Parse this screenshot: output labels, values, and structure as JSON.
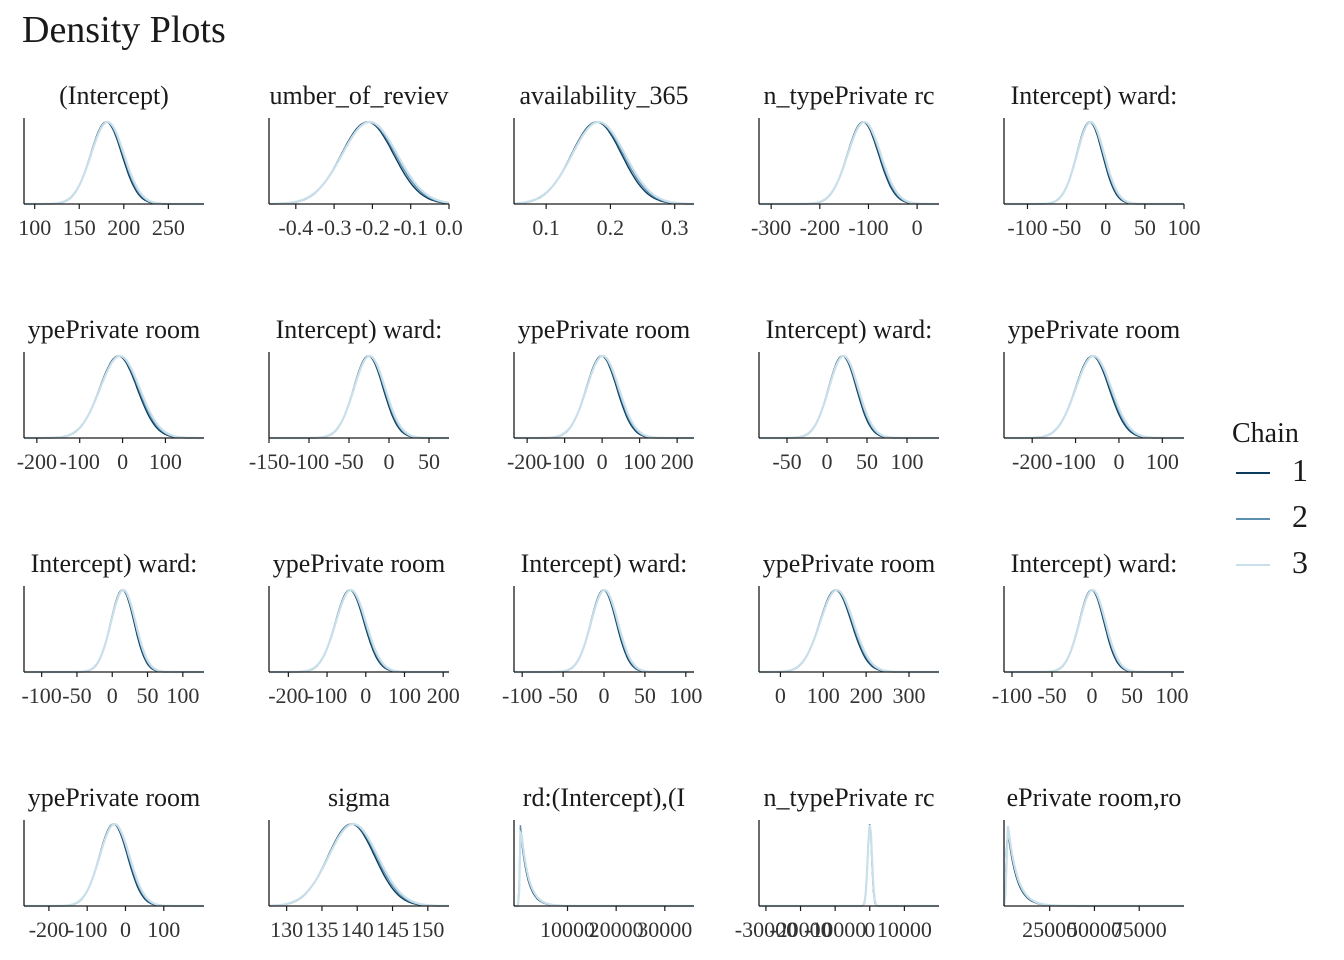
{
  "title": "Density Plots",
  "legend": {
    "title": "Chain",
    "items": [
      {
        "label": "1",
        "color": "#0b3c5d"
      },
      {
        "label": "2",
        "color": "#5b8fb2"
      },
      {
        "label": "3",
        "color": "#c9dfea"
      }
    ]
  },
  "chart_data": [
    {
      "type": "area",
      "title": "(Intercept)",
      "xlim": [
        88,
        290
      ],
      "ticks": [
        100,
        150,
        200,
        250
      ],
      "tick_labels": [
        "100",
        "150",
        "200",
        "250"
      ],
      "mean": 181,
      "sd": 18,
      "shape": "normal"
    },
    {
      "type": "area",
      "title": "umber_of_reviev",
      "xlim": [
        -0.47,
        0.0
      ],
      "ticks": [
        -0.4,
        -0.3,
        -0.2,
        -0.1,
        0.0
      ],
      "tick_labels": [
        "-0.4",
        "-0.3",
        "-0.2",
        "-0.1",
        "0.0"
      ],
      "mean": -0.21,
      "sd": 0.07,
      "shape": "normal"
    },
    {
      "type": "area",
      "title": "availability_365",
      "xlim": [
        0.05,
        0.33
      ],
      "ticks": [
        0.1,
        0.2,
        0.3
      ],
      "tick_labels": [
        "0.1",
        "0.2",
        "0.3"
      ],
      "mean": 0.18,
      "sd": 0.04,
      "shape": "normal"
    },
    {
      "type": "area",
      "title": "n_typePrivate rc",
      "xlim": [
        -325,
        45
      ],
      "ticks": [
        -300,
        -200,
        -100,
        0
      ],
      "tick_labels": [
        "-300",
        "-200",
        "-100",
        "0"
      ],
      "mean": -110,
      "sd": 33,
      "shape": "normal"
    },
    {
      "type": "area",
      "title": "Intercept) ward:",
      "xlim": [
        -130,
        100
      ],
      "ticks": [
        -100,
        -50,
        0,
        50,
        100
      ],
      "tick_labels": [
        "-100",
        "-50",
        "0",
        "50",
        "100"
      ],
      "mean": -20,
      "sd": 17,
      "shape": "normal"
    },
    {
      "type": "area",
      "title": "ypePrivate room",
      "xlim": [
        -230,
        190
      ],
      "ticks": [
        -200,
        -100,
        0,
        100
      ],
      "tick_labels": [
        "-200",
        "-100",
        "0",
        "100"
      ],
      "mean": -8,
      "sd": 45,
      "shape": "normal"
    },
    {
      "type": "area",
      "title": "Intercept) ward:",
      "xlim": [
        -150,
        75
      ],
      "ticks": [
        -150,
        -100,
        -50,
        0,
        50
      ],
      "tick_labels": [
        "-150",
        "-100",
        "-50",
        "0",
        "50"
      ],
      "mean": -25,
      "sd": 19,
      "shape": "normal"
    },
    {
      "type": "area",
      "title": "ypePrivate room",
      "xlim": [
        -235,
        245
      ],
      "ticks": [
        -200,
        -100,
        0,
        100,
        200
      ],
      "tick_labels": [
        "-200",
        "-100",
        "0",
        "100",
        "200"
      ],
      "mean": 0,
      "sd": 42,
      "shape": "normal"
    },
    {
      "type": "area",
      "title": "Intercept) ward:",
      "xlim": [
        -85,
        140
      ],
      "ticks": [
        -50,
        0,
        50,
        100
      ],
      "tick_labels": [
        "-50",
        "0",
        "50",
        "100"
      ],
      "mean": 20,
      "sd": 18,
      "shape": "normal"
    },
    {
      "type": "area",
      "title": "ypePrivate room",
      "xlim": [
        -265,
        150
      ],
      "ticks": [
        -200,
        -100,
        0,
        100
      ],
      "tick_labels": [
        "-200",
        "-100",
        "0",
        "100"
      ],
      "mean": -60,
      "sd": 40,
      "shape": "normal"
    },
    {
      "type": "area",
      "title": "Intercept) ward:",
      "xlim": [
        -125,
        130
      ],
      "ticks": [
        -100,
        -50,
        0,
        50,
        100
      ],
      "tick_labels": [
        "-100",
        "-50",
        "0",
        "50",
        "100"
      ],
      "mean": 15,
      "sd": 17,
      "shape": "normal"
    },
    {
      "type": "area",
      "title": "ypePrivate room",
      "xlim": [
        -250,
        215
      ],
      "ticks": [
        -200,
        -100,
        0,
        100,
        200
      ],
      "tick_labels": [
        "-200",
        "-100",
        "0",
        "100",
        "200"
      ],
      "mean": -40,
      "sd": 38,
      "shape": "normal"
    },
    {
      "type": "area",
      "title": "Intercept) ward:",
      "xlim": [
        -110,
        110
      ],
      "ticks": [
        -100,
        -50,
        0,
        50,
        100
      ],
      "tick_labels": [
        "-100",
        "-50",
        "0",
        "50",
        "100"
      ],
      "mean": 0,
      "sd": 16,
      "shape": "normal"
    },
    {
      "type": "area",
      "title": "ypePrivate room",
      "xlim": [
        -50,
        370
      ],
      "ticks": [
        0,
        100,
        200,
        300
      ],
      "tick_labels": [
        "0",
        "100",
        "200",
        "300"
      ],
      "mean": 130,
      "sd": 38,
      "shape": "normal"
    },
    {
      "type": "area",
      "title": "Intercept) ward:",
      "xlim": [
        -110,
        115
      ],
      "ticks": [
        -100,
        -50,
        0,
        50,
        100
      ],
      "tick_labels": [
        "-100",
        "-50",
        "0",
        "50",
        "100"
      ],
      "mean": 0,
      "sd": 16,
      "shape": "normal"
    },
    {
      "type": "area",
      "title": "ypePrivate room",
      "xlim": [
        -265,
        205
      ],
      "ticks": [
        -200,
        -100,
        0,
        100
      ],
      "tick_labels": [
        "-200",
        "-100",
        "0",
        "100"
      ],
      "mean": -30,
      "sd": 38,
      "shape": "normal"
    },
    {
      "type": "area",
      "title": "sigma",
      "xlim": [
        127.5,
        153
      ],
      "ticks": [
        130,
        135,
        140,
        145,
        150
      ],
      "tick_labels": [
        "130",
        "135",
        "140",
        "145",
        "150"
      ],
      "mean": 139.3,
      "sd": 3.4,
      "shape": "normal"
    },
    {
      "type": "area",
      "title": "rd:(Intercept),(I",
      "xlim": [
        -1000,
        36000
      ],
      "ticks": [
        10000,
        20000,
        30000
      ],
      "tick_labels": [
        "10000",
        "20000",
        "30000"
      ],
      "mean": 300,
      "sd": 1500,
      "shape": "skewed"
    },
    {
      "type": "area",
      "title": "n_typePrivate rc",
      "xlim": [
        -32000,
        20000
      ],
      "ticks": [
        -30000,
        -20000,
        -10000,
        0,
        10000
      ],
      "tick_labels": [
        "-30000",
        "-20000",
        "-10000",
        "0",
        "10000"
      ],
      "mean": 0,
      "sd": 600,
      "shape": "spike"
    },
    {
      "type": "area",
      "title": "ePrivate room,ro",
      "xlim": [
        -500,
        100000
      ],
      "ticks": [
        25000,
        50000,
        75000
      ],
      "tick_labels": [
        "25000",
        "50000",
        "75000"
      ],
      "mean": 1500,
      "sd": 5000,
      "shape": "skewed"
    }
  ]
}
